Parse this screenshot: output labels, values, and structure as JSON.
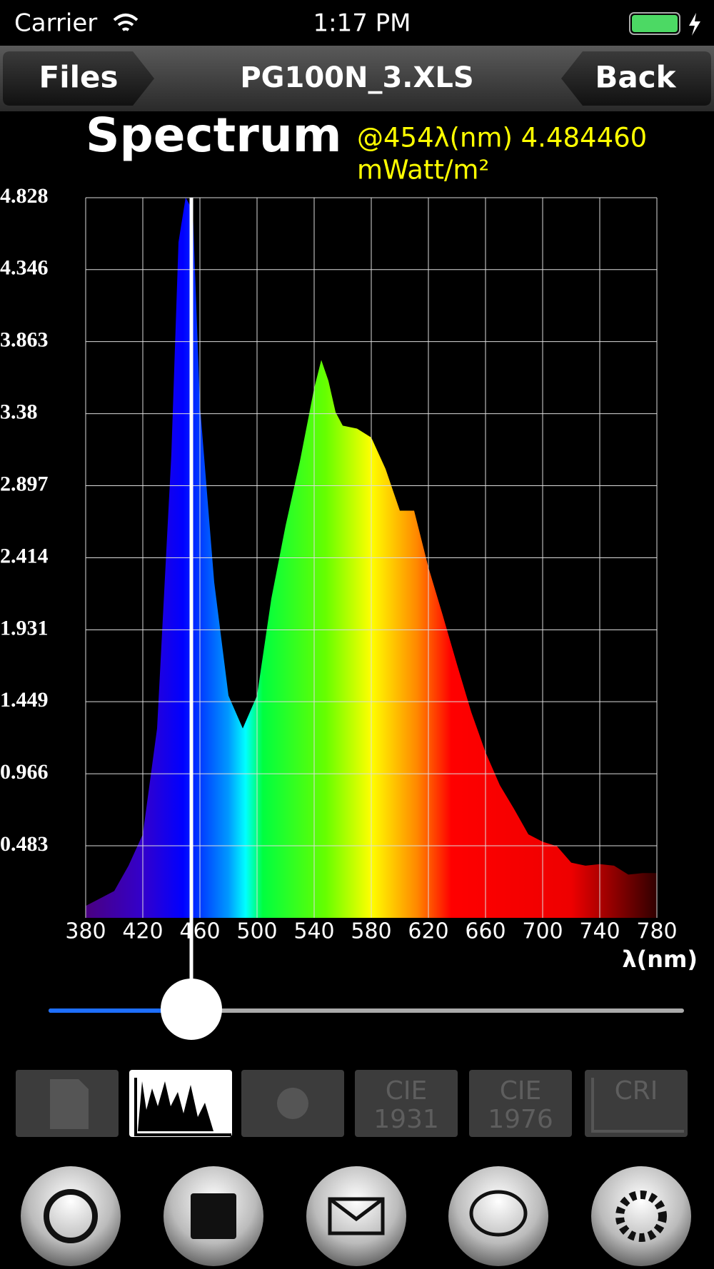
{
  "status_bar": {
    "carrier": "Carrier",
    "time": "1:17 PM"
  },
  "nav": {
    "left_button": "Files",
    "title": "PG100N_3.XLS",
    "right_button": "Back"
  },
  "chart_data": {
    "type": "area",
    "title": "Spectrum",
    "readout": [
      "@454λ(nm) 4.484460",
      "mWatt/m²"
    ],
    "x_label": "λ(nm)",
    "x": [
      380,
      390,
      400,
      410,
      420,
      430,
      440,
      445,
      450,
      455,
      460,
      470,
      480,
      490,
      500,
      510,
      520,
      530,
      540,
      545,
      550,
      555,
      560,
      570,
      580,
      590,
      600,
      610,
      620,
      630,
      640,
      650,
      660,
      670,
      680,
      690,
      700,
      710,
      720,
      730,
      740,
      750,
      760,
      770,
      780
    ],
    "values": [
      0.08,
      0.13,
      0.18,
      0.35,
      0.56,
      1.27,
      3.11,
      4.53,
      4.83,
      4.74,
      3.44,
      2.25,
      1.49,
      1.27,
      1.49,
      2.14,
      2.63,
      3.06,
      3.55,
      3.74,
      3.6,
      3.39,
      3.3,
      3.28,
      3.22,
      3.01,
      2.73,
      2.73,
      2.35,
      2.03,
      1.7,
      1.38,
      1.11,
      0.89,
      0.73,
      0.56,
      0.51,
      0.48,
      0.37,
      0.35,
      0.36,
      0.35,
      0.29,
      0.3,
      0.3
    ],
    "xlim": [
      380,
      780
    ],
    "xticks": [
      380,
      420,
      460,
      500,
      540,
      580,
      620,
      660,
      700,
      740,
      780
    ],
    "ylim": [
      0,
      4.828
    ],
    "yticks": [
      0.483,
      0.966,
      1.449,
      1.931,
      2.414,
      2.897,
      3.38,
      3.863,
      4.346,
      4.828
    ],
    "grid": true,
    "cursor_x": 454
  },
  "tabs": [
    "CIE 1931",
    "CIE 1976",
    "CRI"
  ]
}
